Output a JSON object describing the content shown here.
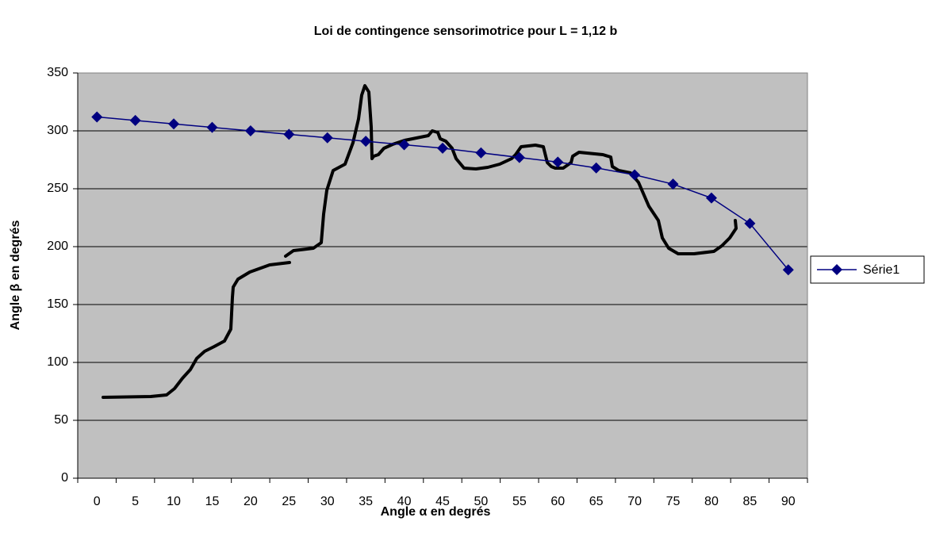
{
  "chart_data": {
    "type": "line",
    "title": "Loi de contingence sensorimotrice pour L = 1,12 b",
    "x_label": "Angle α en degrés",
    "y_label": "Angle β en degrés",
    "categories": [
      "0",
      "5",
      "10",
      "15",
      "20",
      "25",
      "30",
      "35",
      "40",
      "45",
      "50",
      "55",
      "60",
      "65",
      "70",
      "75",
      "80",
      "85",
      "90"
    ],
    "series": [
      {
        "name": "Série1",
        "color": "#000080",
        "values": [
          312,
          309,
          306,
          303,
          300,
          297,
          294,
          291,
          288,
          285,
          281,
          277,
          273,
          268,
          262,
          254,
          242,
          220,
          180
        ]
      }
    ],
    "ylim": [
      0,
      350
    ],
    "yticks": [
      0,
      50,
      100,
      150,
      200,
      250,
      300,
      350
    ],
    "grid": true,
    "legend": "right"
  }
}
